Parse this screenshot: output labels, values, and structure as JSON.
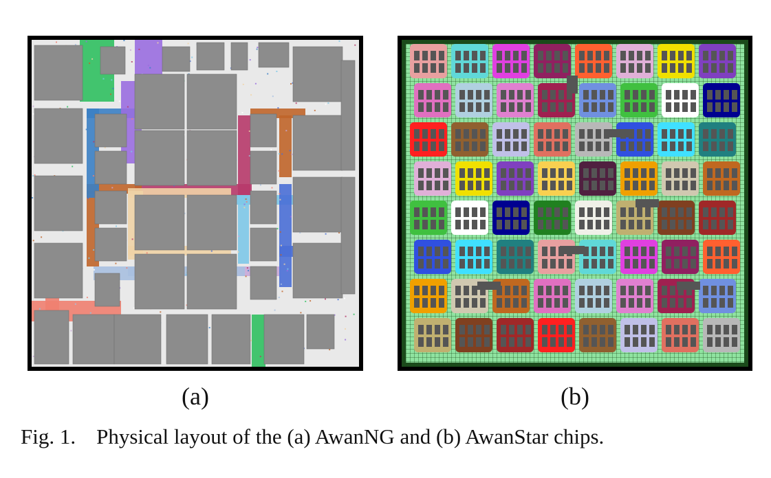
{
  "figure": {
    "panel_a_label": "(a)",
    "panel_b_label": "(b)",
    "caption_prefix": "Fig. 1.",
    "caption_text": "Physical layout of the (a) AwanNG and (b) AwanStar chips."
  },
  "colors": {
    "macro_gray": "#8c8c8c",
    "panel_b_background": "#8fe3a0",
    "panel_b_grid": "#1b4a1b",
    "panel_a_route_colors": [
      "#b73a6a",
      "#c0652a",
      "#f0d3a6",
      "#7ec8e8",
      "#4a6fd6",
      "#3b7fc4",
      "#f08070",
      "#c8a8d8",
      "#a8c0e0",
      "#30c060",
      "#9a6ee0",
      "#ffffff"
    ],
    "panel_b_block_colors": [
      "#e8a0a0",
      "#e0b0d8",
      "#f0a000",
      "#e080d0",
      "#000090",
      "#a02828",
      "#b8b8b8",
      "#60d8d8",
      "#f0e000",
      "#d0c8b0",
      "#a02050",
      "#208020",
      "#ff2020",
      "#3050e0",
      "#e040e0",
      "#8040c0",
      "#c06820",
      "#7090e0",
      "#f0f0e8",
      "#906030",
      "#40e0ff",
      "#902060",
      "#f8d050",
      "#e070c0",
      "#40c040",
      "#c0b070",
      "#c0c0e8",
      "#208080",
      "#ff6030",
      "#502040",
      "#b0d0e0",
      "#ffffff",
      "#804020",
      "#e07060"
    ]
  }
}
